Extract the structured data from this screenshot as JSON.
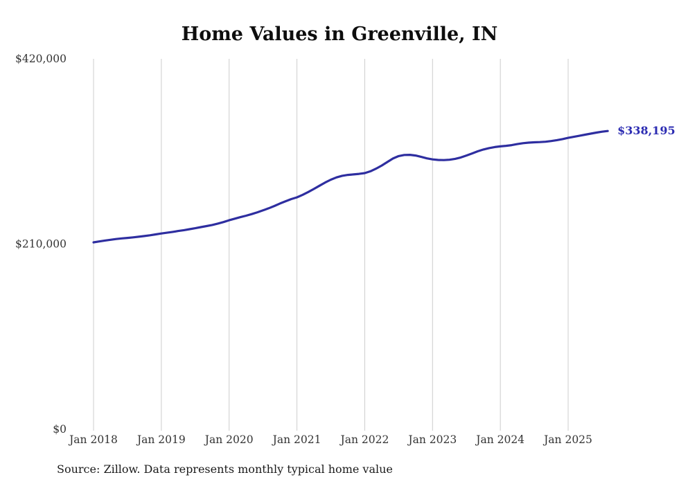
{
  "chart_data": {
    "type": "line",
    "title": "Home Values in Greenville, IN",
    "source": "Source: Zillow. Data represents monthly typical home value",
    "series_name": "Monthly typical home value",
    "units": "USD",
    "end_label": "$338,195",
    "latest_value": 338195,
    "ylim": [
      0,
      420000
    ],
    "grid": "vertical-only",
    "x_start": "2018-01",
    "x_interval": "monthly",
    "y_ticks": [
      {
        "value": 420000,
        "label": "$420,000"
      },
      {
        "value": 210000,
        "label": "$210,000"
      },
      {
        "value": 0,
        "label": "$0"
      }
    ],
    "x_ticks": [
      {
        "month_index": 0,
        "label": "Jan 2018"
      },
      {
        "month_index": 12,
        "label": "Jan 2019"
      },
      {
        "month_index": 24,
        "label": "Jan 2020"
      },
      {
        "month_index": 36,
        "label": "Jan 2021"
      },
      {
        "month_index": 48,
        "label": "Jan 2022"
      },
      {
        "month_index": 60,
        "label": "Jan 2023"
      },
      {
        "month_index": 72,
        "label": "Jan 2024"
      },
      {
        "month_index": 84,
        "label": "Jan 2025"
      }
    ],
    "values": [
      212000,
      213000,
      214000,
      214900,
      215700,
      216400,
      217000,
      217600,
      218300,
      219100,
      220000,
      221000,
      222000,
      222900,
      223800,
      224800,
      225800,
      226900,
      228000,
      229200,
      230400,
      231700,
      233200,
      235000,
      237000,
      238800,
      240500,
      242200,
      244000,
      246000,
      248200,
      250600,
      253200,
      256000,
      258600,
      261000,
      263000,
      265800,
      269000,
      272500,
      276200,
      279800,
      283000,
      285600,
      287400,
      288400,
      289000,
      289600,
      290500,
      292500,
      295500,
      299000,
      303000,
      307000,
      309800,
      311000,
      311200,
      310400,
      308800,
      307200,
      306000,
      305400,
      305200,
      305600,
      306600,
      308200,
      310400,
      312800,
      315200,
      317200,
      318800,
      320000,
      320800,
      321400,
      322200,
      323400,
      324400,
      325000,
      325400,
      325600,
      326000,
      326800,
      327800,
      329000,
      330400,
      331600,
      332800,
      334000,
      335200,
      336400,
      337400,
      338195
    ],
    "colors": {
      "line": "#2e2ea0",
      "label": "#2b2bb2",
      "grid": "#cccccc",
      "text": "#333333"
    }
  }
}
